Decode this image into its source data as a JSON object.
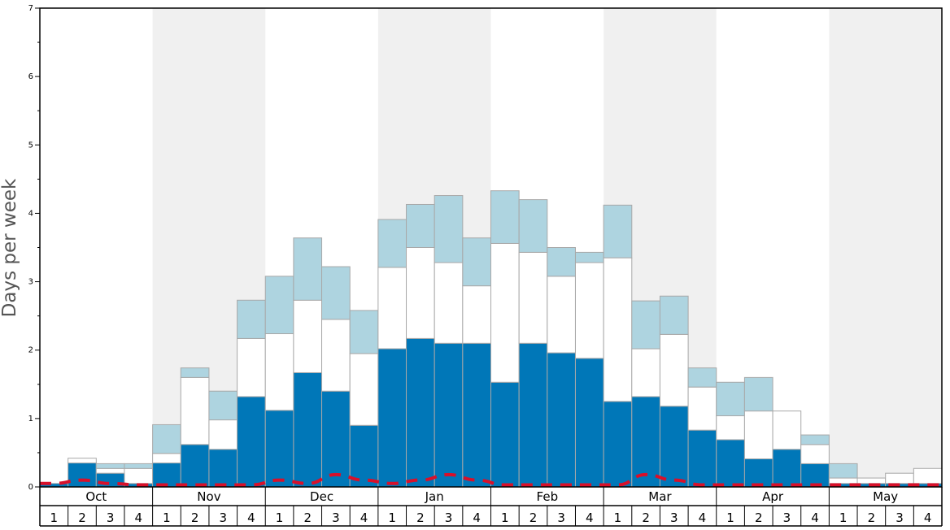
{
  "chart_data": {
    "type": "bar",
    "stacked": true,
    "ylabel": "Days per week",
    "ylim": [
      0,
      7
    ],
    "y_ticks": [
      "0",
      "1",
      "2",
      "3",
      "4",
      "5",
      "6",
      "7"
    ],
    "months": [
      "Oct",
      "Nov",
      "Dec",
      "Jan",
      "Feb",
      "Mar",
      "Apr",
      "May"
    ],
    "week_labels": [
      "1",
      "2",
      "3",
      "4"
    ],
    "grid": false,
    "alternating_month_shading": true,
    "colors": {
      "level1": "#0077b8",
      "level2": "#ffffff",
      "level3": "#aed4e0",
      "bar_edge": "#a8a8a8",
      "dashed_line": "#d8102a",
      "shade": "#f0f0f0"
    },
    "series": [
      {
        "values": [
          0.05,
          0.35,
          0.2,
          0.05,
          0.35,
          0.62,
          0.55,
          1.32,
          1.12,
          1.67,
          1.4,
          0.9,
          2.02,
          2.17,
          2.1,
          2.1,
          1.53,
          2.1,
          1.96,
          1.88,
          1.25,
          1.32,
          1.18,
          0.83,
          0.69,
          0.41,
          0.55,
          0.34,
          0.05,
          0.05,
          0.05,
          0.05
        ]
      },
      {
        "values": [
          0.0,
          0.07,
          0.07,
          0.22,
          0.14,
          0.98,
          0.43,
          0.85,
          1.12,
          1.06,
          1.05,
          1.05,
          1.19,
          1.33,
          1.18,
          0.84,
          2.03,
          1.33,
          1.12,
          1.4,
          2.1,
          0.7,
          1.05,
          0.63,
          0.35,
          0.7,
          0.56,
          0.28,
          0.08,
          0.08,
          0.15,
          0.22
        ]
      },
      {
        "values": [
          0.0,
          0.0,
          0.07,
          0.07,
          0.42,
          0.14,
          0.42,
          0.56,
          0.84,
          0.91,
          0.77,
          0.63,
          0.7,
          0.63,
          0.98,
          0.7,
          0.77,
          0.77,
          0.42,
          0.15,
          0.77,
          0.7,
          0.56,
          0.28,
          0.49,
          0.49,
          0.0,
          0.14,
          0.21,
          0.0,
          0.0,
          0.0
        ]
      }
    ],
    "dashed_line_values": [
      0.05,
      0.1,
      0.05,
      0.03,
      0.03,
      0.03,
      0.03,
      0.03,
      0.1,
      0.05,
      0.18,
      0.1,
      0.05,
      0.1,
      0.18,
      0.1,
      0.03,
      0.03,
      0.03,
      0.03,
      0.03,
      0.18,
      0.1,
      0.03,
      0.03,
      0.03,
      0.03,
      0.03,
      0.03,
      0.03,
      0.03,
      0.03
    ]
  }
}
